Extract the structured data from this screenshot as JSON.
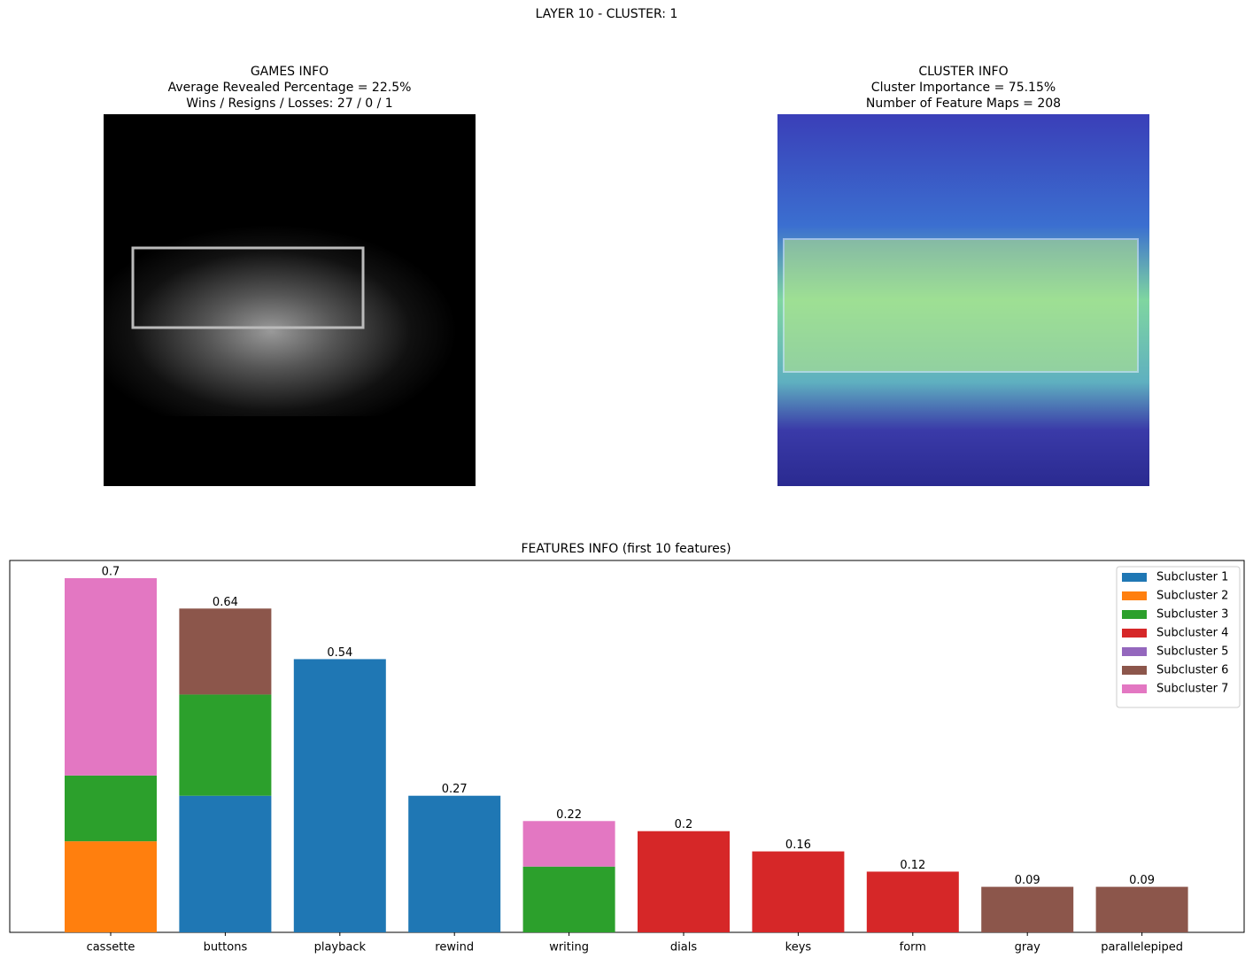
{
  "title": "LAYER 10 - CLUSTER: 1",
  "panels": [
    {
      "title_lines": [
        "GAMES INFO",
        "Average Revealed Percentage = 22.5%",
        "Wins / Resigns / Losses: 27 / 0 / 1"
      ]
    },
    {
      "title_lines": [
        "CLUSTER INFO",
        "Cluster Importance = 75.15%",
        "Number of Feature Maps = 208"
      ]
    }
  ],
  "chart_data": {
    "type": "stacked-bar",
    "title": "FEATURES INFO (first 10 features)",
    "categories": [
      "cassette",
      "buttons",
      "playback",
      "rewind",
      "writing",
      "dials",
      "keys",
      "form",
      "gray",
      "parallelepiped"
    ],
    "series": [
      {
        "name": "Subcluster 1",
        "color": "#1f77b4",
        "values": [
          null,
          0.27,
          0.54,
          0.27,
          null,
          null,
          null,
          null,
          null,
          null
        ]
      },
      {
        "name": "Subcluster 2",
        "color": "#ff7f0e",
        "values": [
          0.18,
          null,
          null,
          null,
          null,
          null,
          null,
          null,
          null,
          null
        ]
      },
      {
        "name": "Subcluster 3",
        "color": "#2ca02c",
        "values": [
          0.13,
          0.2,
          null,
          null,
          0.13,
          null,
          null,
          null,
          null,
          null
        ]
      },
      {
        "name": "Subcluster 4",
        "color": "#d62728",
        "values": [
          null,
          null,
          null,
          null,
          null,
          0.2,
          0.16,
          0.12,
          null,
          null
        ]
      },
      {
        "name": "Subcluster 5",
        "color": "#9467bd",
        "values": [
          null,
          null,
          null,
          null,
          null,
          null,
          null,
          null,
          null,
          null
        ]
      },
      {
        "name": "Subcluster 6",
        "color": "#8c564b",
        "values": [
          null,
          0.17,
          null,
          null,
          null,
          null,
          null,
          null,
          0.09,
          0.09
        ]
      },
      {
        "name": "Subcluster 7",
        "color": "#e377c2",
        "values": [
          0.39,
          null,
          null,
          null,
          0.09,
          null,
          null,
          null,
          null,
          null
        ]
      }
    ],
    "totals": [
      0.7,
      0.64,
      0.54,
      0.27,
      0.22,
      0.2,
      0.16,
      0.12,
      0.09,
      0.09
    ],
    "ylim": [
      0,
      0.735
    ],
    "legend": "upper right"
  }
}
